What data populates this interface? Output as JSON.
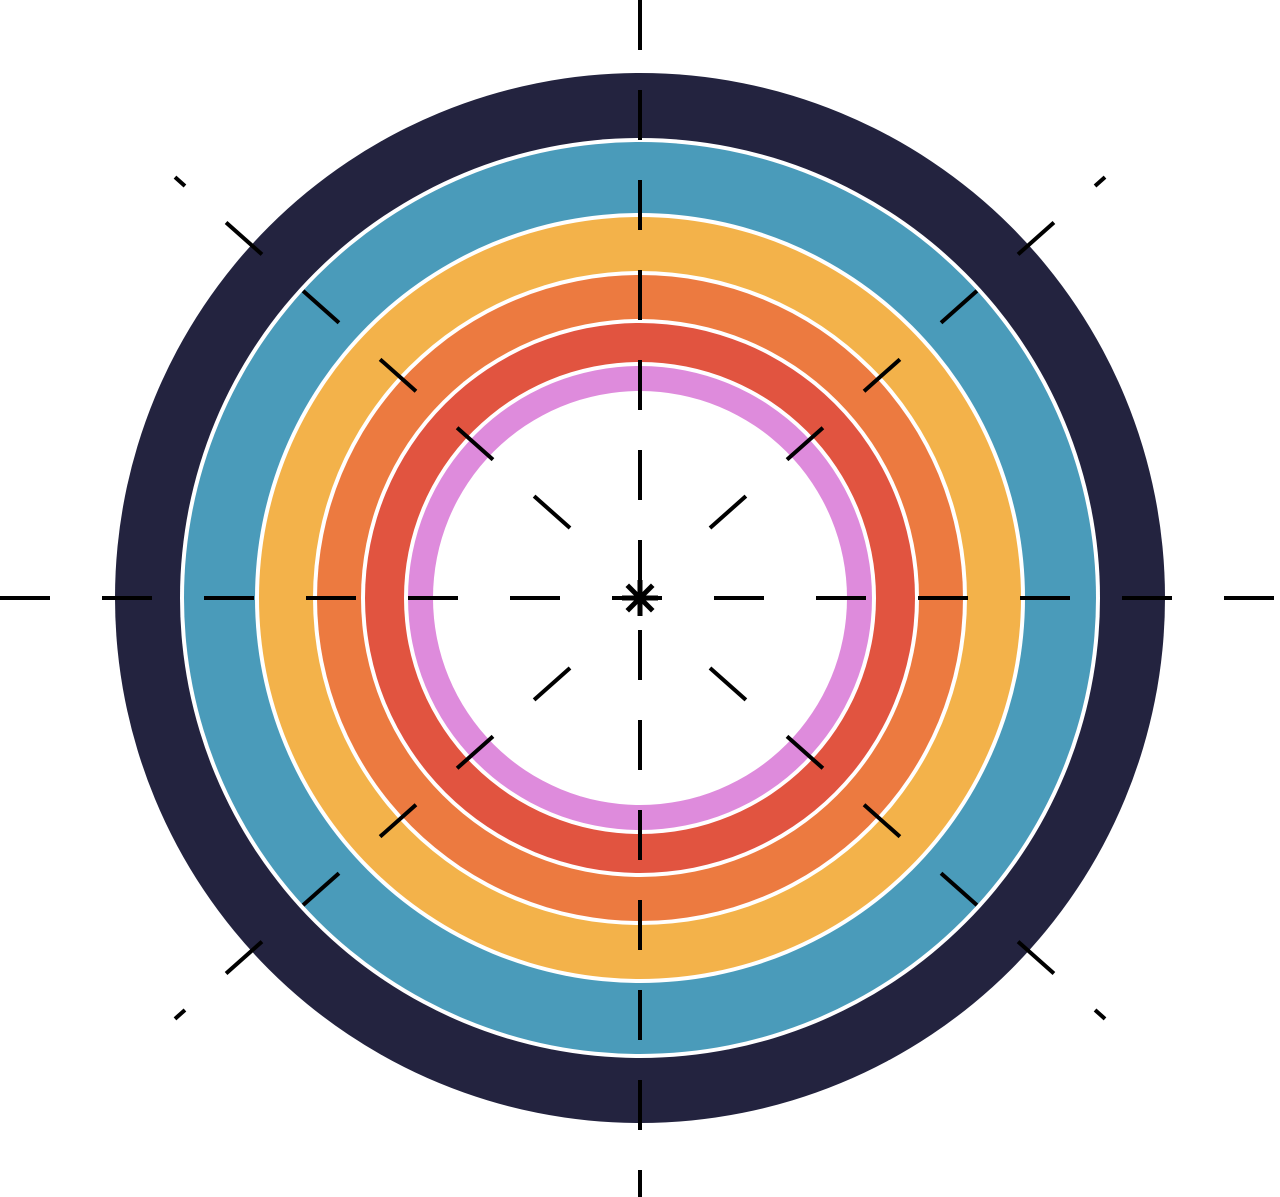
{
  "diagram": {
    "shape": "concentric-rings-target",
    "rings": [
      {
        "name": "outer-ring",
        "color": "#23233f"
      },
      {
        "name": "blue-ring",
        "color": "#4a9bba"
      },
      {
        "name": "yellow-ring",
        "color": "#f3b24a"
      },
      {
        "name": "orange-ring",
        "color": "#ec7a40"
      },
      {
        "name": "red-ring",
        "color": "#e15440"
      },
      {
        "name": "pink-ring",
        "color": "#de8bdc"
      }
    ],
    "center_color": "#ffffff",
    "separator_color": "#ffffff",
    "crosshair": {
      "color": "#000000",
      "style": "dashed",
      "directions": 8
    },
    "center_marker": "asterisk"
  }
}
